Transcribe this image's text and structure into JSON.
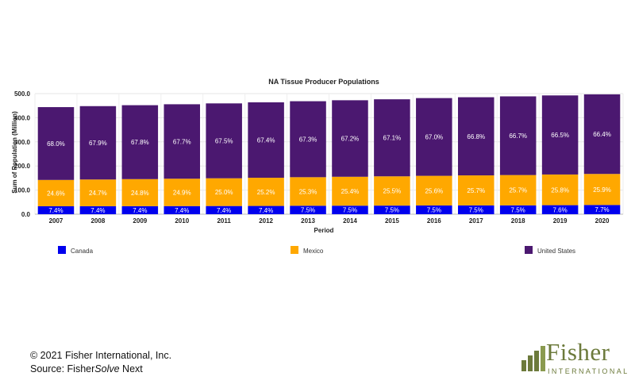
{
  "chart_data": {
    "type": "bar",
    "stacked": true,
    "title": "NA Tissue Producer Populations",
    "xlabel": "Period",
    "ylabel": "Sum of Population (Million)",
    "ylim": [
      0,
      500
    ],
    "yticks": [
      "0.0",
      "100.0",
      "200.0",
      "300.0",
      "400.0",
      "500.0"
    ],
    "grid": true,
    "legend_position": "bottom",
    "categories": [
      "2007",
      "2008",
      "2009",
      "2010",
      "2011",
      "2012",
      "2013",
      "2014",
      "2015",
      "2016",
      "2017",
      "2018",
      "2019",
      "2020"
    ],
    "totals": [
      444,
      448,
      452,
      456,
      460,
      464,
      468,
      472,
      476,
      481,
      485,
      489,
      493,
      497
    ],
    "series": [
      {
        "name": "Canada",
        "color": "#0000ee",
        "labels": [
          "7.4%",
          "7.4%",
          "7.4%",
          "7.4%",
          "7.4%",
          "7.4%",
          "7.5%",
          "7.5%",
          "7.5%",
          "7.5%",
          "7.5%",
          "7.5%",
          "7.6%",
          "7.7%"
        ],
        "values": [
          32.9,
          33.2,
          33.4,
          33.7,
          34.0,
          34.3,
          35.1,
          35.4,
          35.7,
          36.1,
          36.4,
          36.7,
          37.5,
          38.3
        ]
      },
      {
        "name": "Mexico",
        "color": "#ffa800",
        "labels": [
          "24.6%",
          "24.7%",
          "24.8%",
          "24.9%",
          "25.0%",
          "25.2%",
          "25.3%",
          "25.4%",
          "25.5%",
          "25.6%",
          "25.7%",
          "25.7%",
          "25.8%",
          "25.9%"
        ],
        "values": [
          109.2,
          110.7,
          112.1,
          113.5,
          115.0,
          116.9,
          118.4,
          119.9,
          121.4,
          123.1,
          124.6,
          125.7,
          127.2,
          128.7
        ]
      },
      {
        "name": "United States",
        "color": "#4b1870",
        "labels": [
          "68.0%",
          "67.9%",
          "67.8%",
          "67.7%",
          "67.5%",
          "67.4%",
          "67.3%",
          "67.2%",
          "67.1%",
          "67.0%",
          "66.8%",
          "66.7%",
          "66.5%",
          "66.4%"
        ],
        "values": [
          301.9,
          304.2,
          306.5,
          308.7,
          310.5,
          312.7,
          315.0,
          317.2,
          319.4,
          322.3,
          324.0,
          326.2,
          327.8,
          330.0
        ]
      }
    ]
  },
  "footer": {
    "copyright": "© 2021 Fisher International, Inc.",
    "source_prefix": "Source: Fisher",
    "source_italic": "Solve",
    "source_suffix": " Next"
  },
  "logo": {
    "name": "Fisher",
    "tagline": "INTERNATIONAL",
    "color": "#6c7a3b"
  }
}
